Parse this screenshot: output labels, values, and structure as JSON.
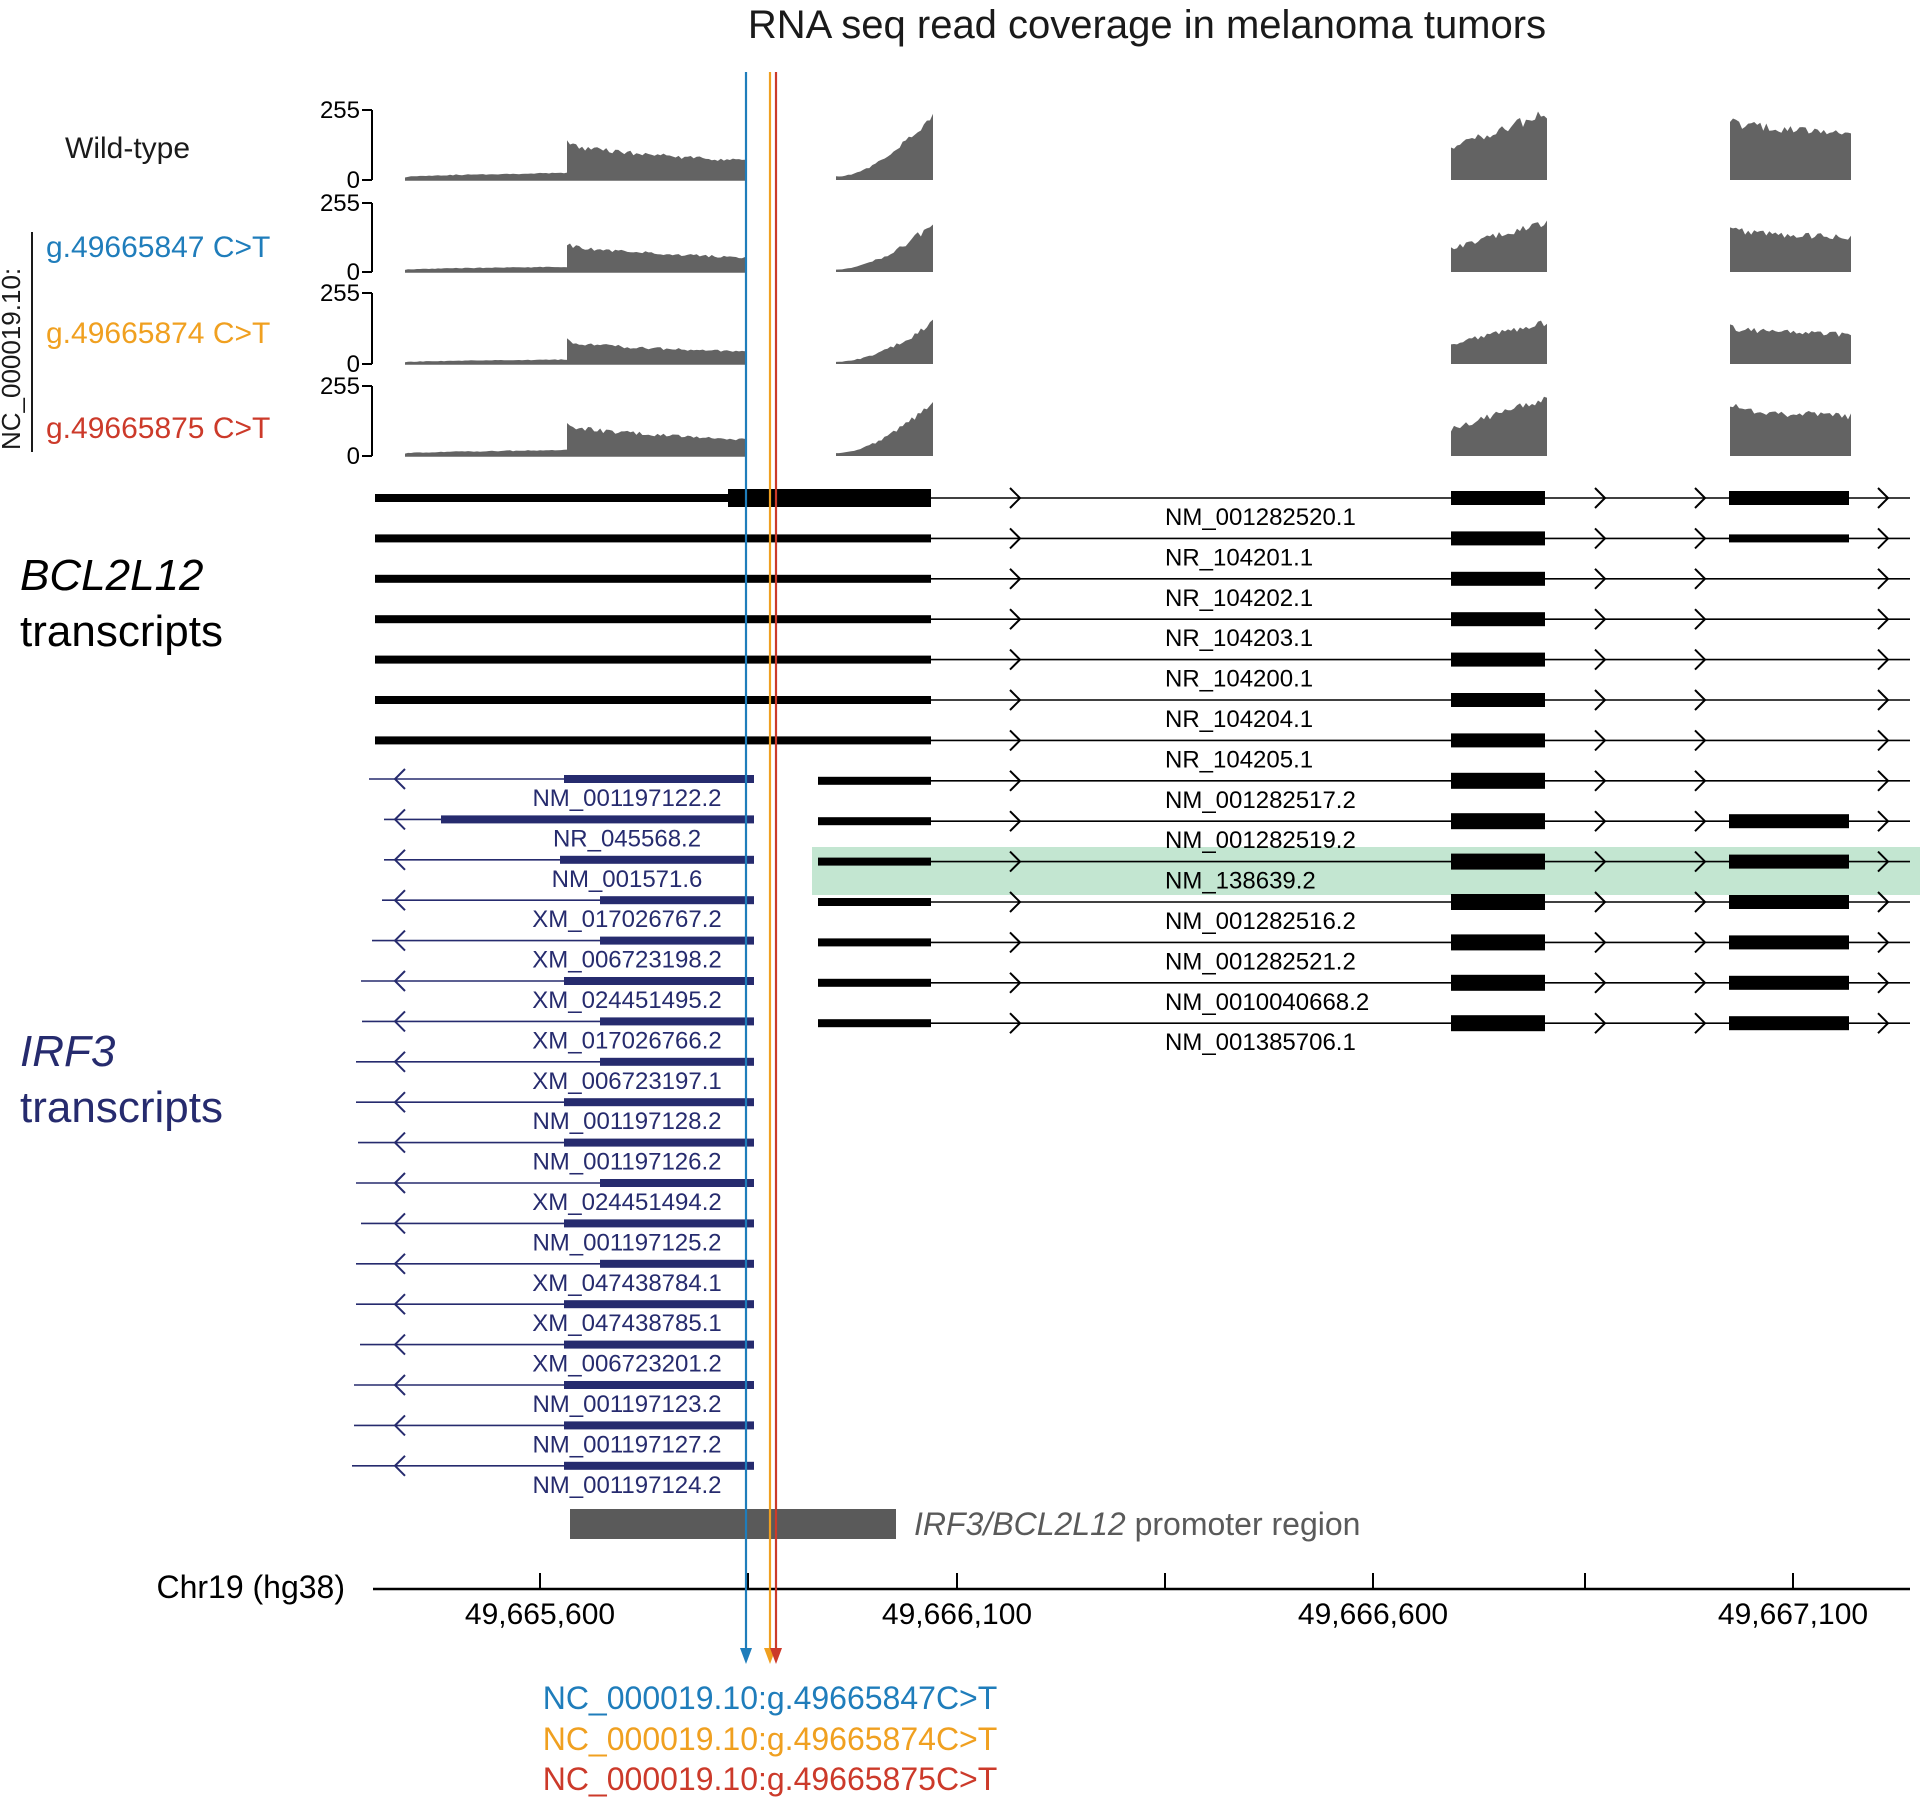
{
  "title": "RNA seq read coverage in melanoma tumors",
  "side_label": "NC_000019.10:",
  "colors": {
    "variant_1": "#1f7dbb",
    "variant_2": "#f0a020",
    "variant_3": "#cc3a2a",
    "coverage": "#636363",
    "bcl2l12": "#000000",
    "irf3": "#262b6e",
    "highlight": "#a9dbbd",
    "promoter": "#5a5a5a"
  },
  "coverage": {
    "axis_max_label": "255",
    "axis_min_label": "0",
    "tracks": [
      {
        "label": "Wild-type",
        "scale": 1.0
      },
      {
        "label": "g.49665847 C>T",
        "scale": 0.75
      },
      {
        "label": "g.49665874 C>T",
        "scale": 0.62
      },
      {
        "label": "g.49665875 C>T",
        "scale": 0.85
      }
    ]
  },
  "genes": {
    "bcl2l12": {
      "label_italic": "BCL2L12",
      "label_rest": "transcripts"
    },
    "irf3": {
      "label_italic": "IRF3",
      "label_rest": "transcripts"
    }
  },
  "bcl2l12_transcripts": [
    {
      "id": "NM_001282520.1",
      "type": "A",
      "exon4": true
    },
    {
      "id": "NR_104201.1",
      "type": "B",
      "exon4": true
    },
    {
      "id": "NR_104202.1",
      "type": "B",
      "exon4": false
    },
    {
      "id": "NR_104203.1",
      "type": "B",
      "exon4": false
    },
    {
      "id": "NR_104200.1",
      "type": "B",
      "exon4": false
    },
    {
      "id": "NR_104204.1",
      "type": "B",
      "exon4": false
    },
    {
      "id": "NR_104205.1",
      "type": "B",
      "exon4": false
    },
    {
      "id": "NM_001282517.2",
      "type": "C",
      "exon4": false
    },
    {
      "id": "NM_001282519.2",
      "type": "C",
      "exon4": true
    },
    {
      "id": "NM_138639.2",
      "type": "C",
      "exon4": true,
      "highlight": true
    },
    {
      "id": "NM_001282516.2",
      "type": "C",
      "exon4": true
    },
    {
      "id": "NM_001282521.2",
      "type": "C",
      "exon4": true
    },
    {
      "id": "NM_0010040668.2",
      "type": "C",
      "exon4": true
    },
    {
      "id": "NM_001385706.1",
      "type": "C",
      "exon4": true
    }
  ],
  "irf3_transcripts": [
    "NM_001197122.2",
    "NR_045568.2",
    "NM_001571.6",
    "XM_017026767.2",
    "XM_006723198.2",
    "XM_024451495.2",
    "XM_017026766.2",
    "XM_006723197.1",
    "NM_001197128.2",
    "NM_001197126.2",
    "XM_024451494.2",
    "NM_001197125.2",
    "XM_047438784.1",
    "XM_047438785.1",
    "XM_006723201.2",
    "NM_001197123.2",
    "NM_001197127.2",
    "NM_001197124.2"
  ],
  "promoter": {
    "label_italic": "IRF3/BCL2L12",
    "label_rest": " promoter region"
  },
  "axis": {
    "label": "Chr19 (hg38)",
    "tick_labels": [
      "49,665,600",
      "49,666,100",
      "49,666,600",
      "49,667,100"
    ]
  },
  "variants": [
    {
      "id": "NC_000019.10:g.49665847C>T",
      "color": "#1f7dbb"
    },
    {
      "id": "NC_000019.10:g.49665874C>T",
      "color": "#f0a020"
    },
    {
      "id": "NC_000019.10:g.49665875C>T",
      "color": "#cc3a2a"
    }
  ]
}
